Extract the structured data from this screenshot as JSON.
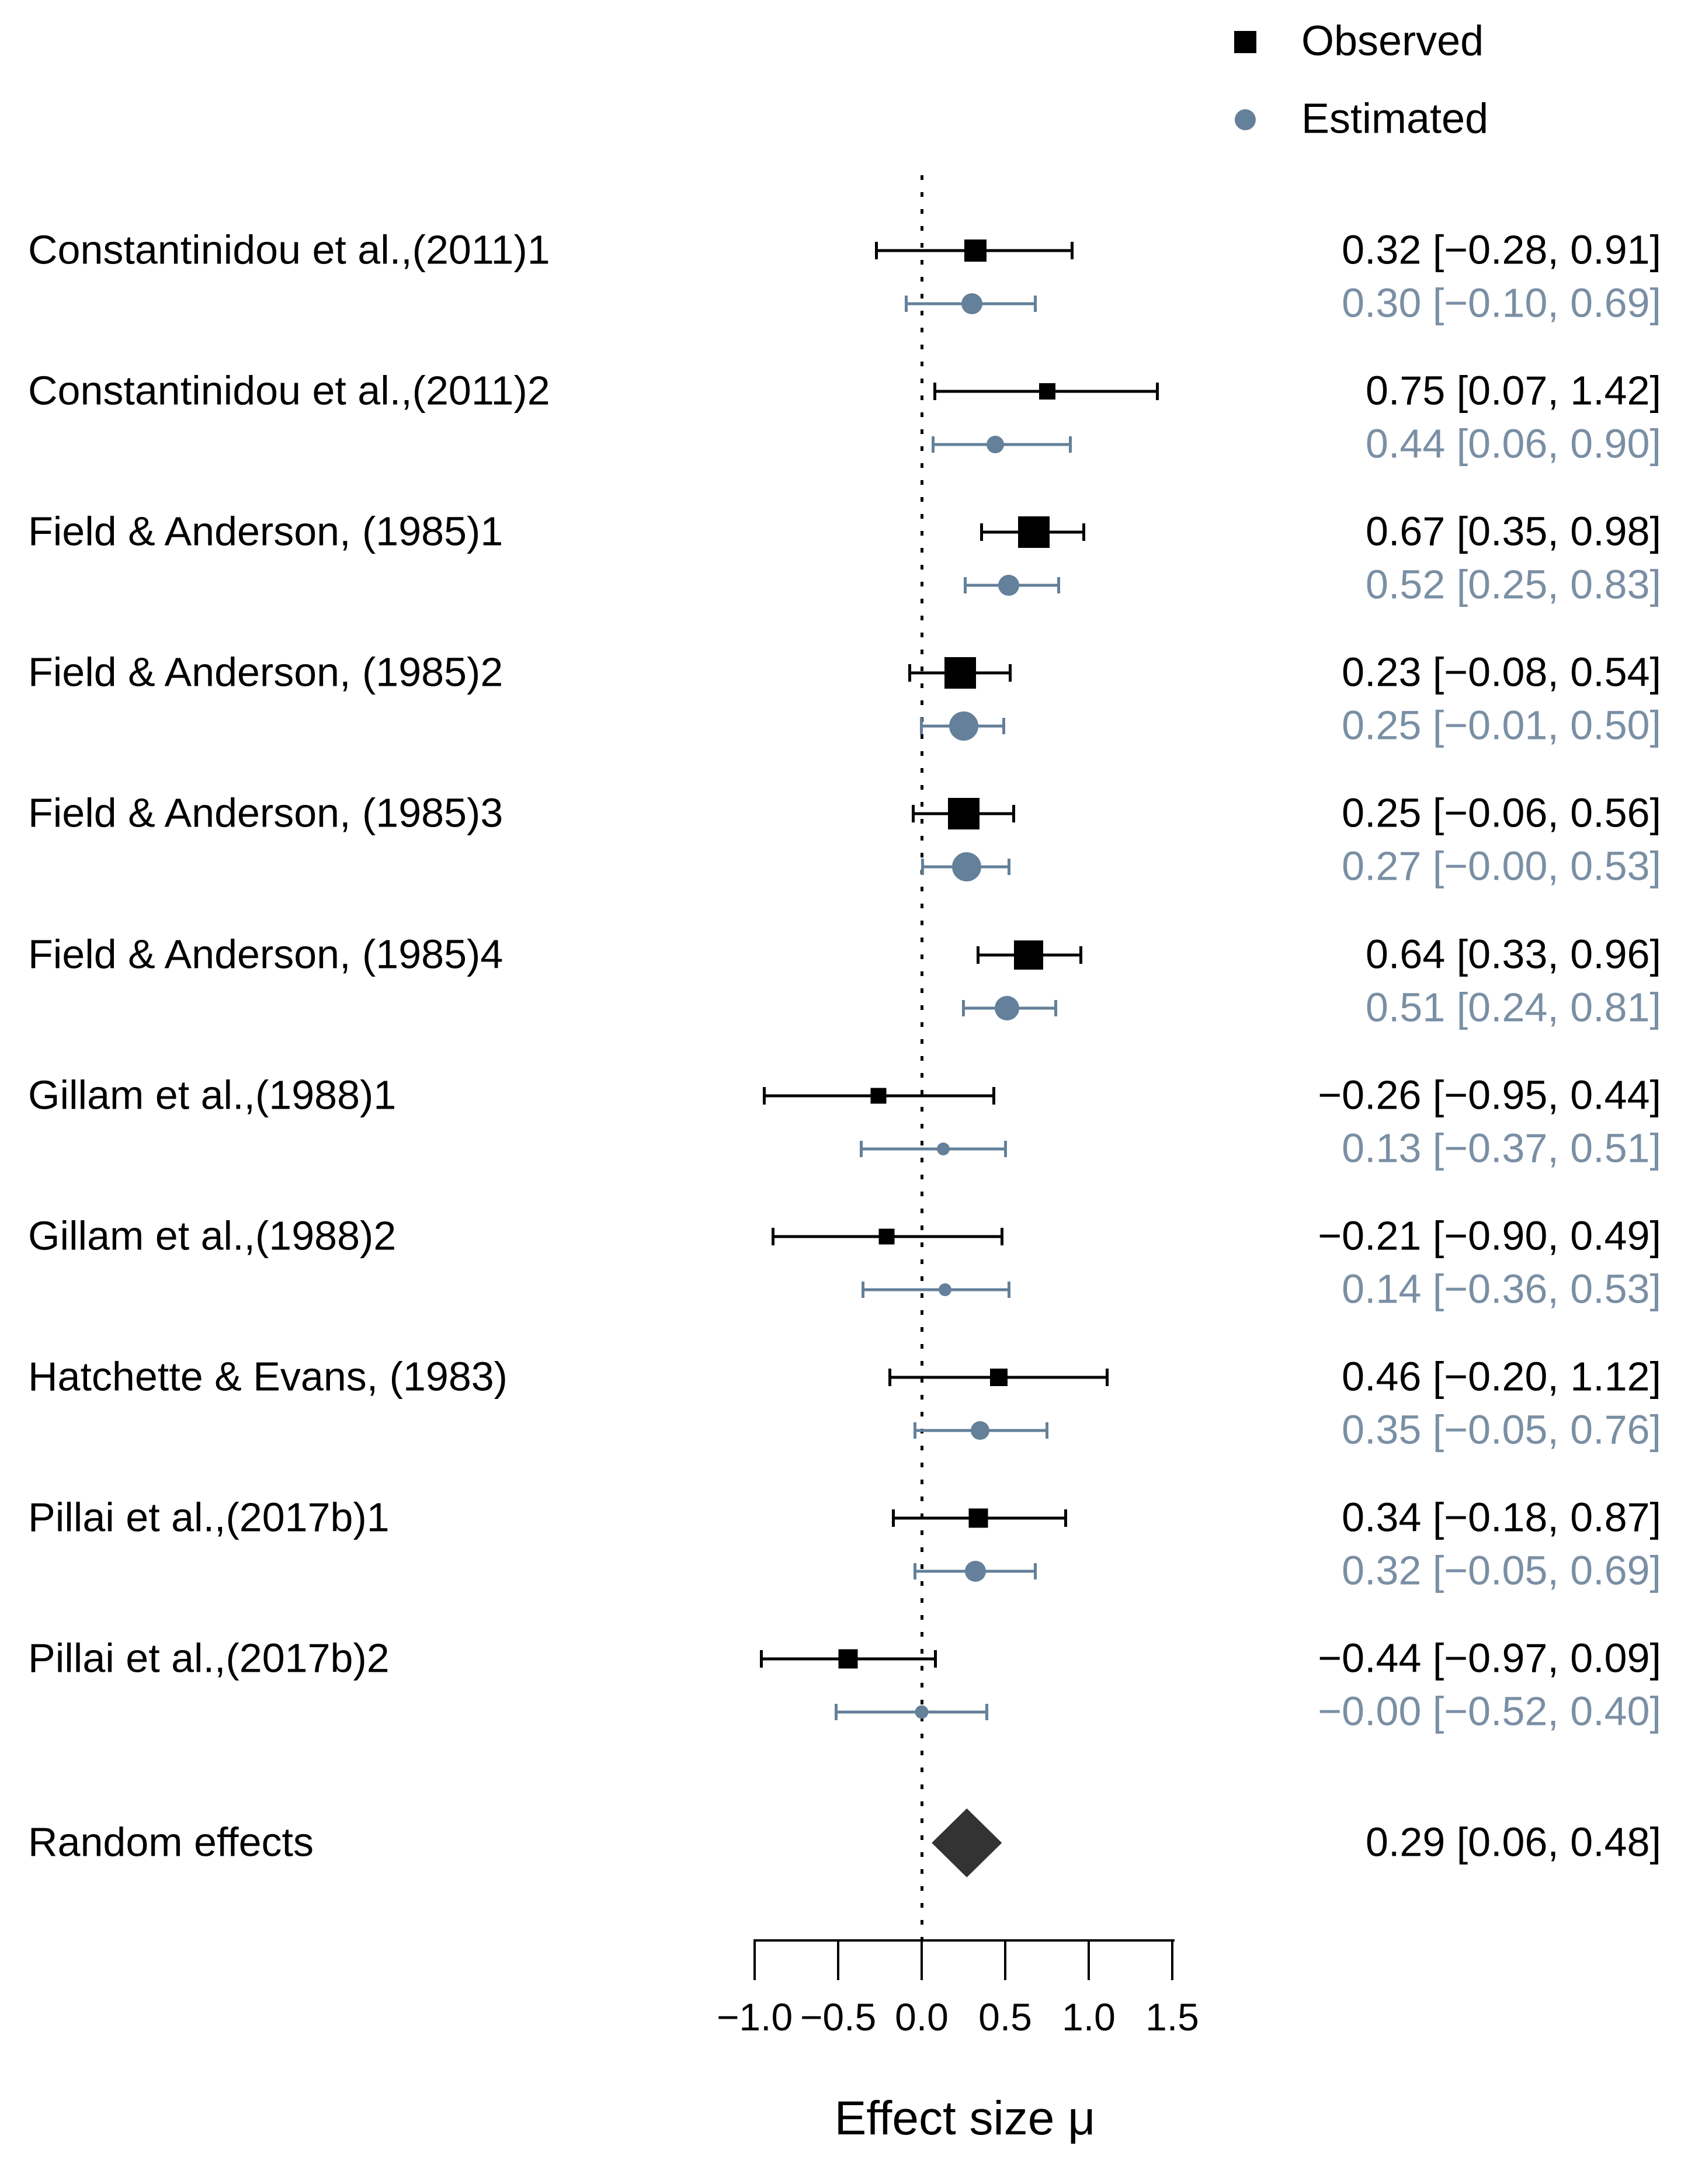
{
  "chart_data": {
    "type": "forest",
    "title": "",
    "xlabel": "Effect size μ",
    "legend": {
      "observed_label": "Observed",
      "estimated_label": "Estimated",
      "position": "top-right"
    },
    "colors": {
      "observed": "#000000",
      "estimated": "#64809a",
      "estimated_text": "#7a8fa4",
      "summary_diamond": "#333333",
      "axis": "#000000"
    },
    "axis": {
      "ticks": [
        -1.0,
        -0.5,
        0.0,
        0.5,
        1.0,
        1.5
      ],
      "tick_labels": [
        "−1.0",
        "−0.5",
        "0.0",
        "0.5",
        "1.0",
        "1.5"
      ],
      "xlim": [
        -1.0,
        1.5
      ],
      "zero_line": 0,
      "grid": false
    },
    "studies": [
      {
        "name": "Constantinidou et al.,(2011)1",
        "observed": {
          "value": 0.32,
          "lo": -0.28,
          "hi": 0.91,
          "text": "0.32 [−0.28, 0.91]",
          "marker_px": 38
        },
        "estimated": {
          "value": 0.3,
          "lo": -0.1,
          "hi": 0.69,
          "text": "0.30 [−0.10, 0.69]",
          "marker_px": 36
        }
      },
      {
        "name": "Constantinidou et al.,(2011)2",
        "observed": {
          "value": 0.75,
          "lo": 0.07,
          "hi": 1.42,
          "text": "0.75 [0.07, 1.42]",
          "marker_px": 28
        },
        "estimated": {
          "value": 0.44,
          "lo": 0.06,
          "hi": 0.9,
          "text": "0.44 [0.06, 0.90]",
          "marker_px": 30
        }
      },
      {
        "name": "Field & Anderson, (1985)1",
        "observed": {
          "value": 0.67,
          "lo": 0.35,
          "hi": 0.98,
          "text": "0.67 [0.35, 0.98]",
          "marker_px": 54
        },
        "estimated": {
          "value": 0.52,
          "lo": 0.25,
          "hi": 0.83,
          "text": "0.52 [0.25, 0.83]",
          "marker_px": 36
        }
      },
      {
        "name": "Field & Anderson, (1985)2",
        "observed": {
          "value": 0.23,
          "lo": -0.08,
          "hi": 0.54,
          "text": "0.23 [−0.08, 0.54]",
          "marker_px": 54
        },
        "estimated": {
          "value": 0.25,
          "lo": -0.01,
          "hi": 0.5,
          "text": "0.25 [−0.01, 0.50]",
          "marker_px": 50
        }
      },
      {
        "name": "Field & Anderson, (1985)3",
        "observed": {
          "value": 0.25,
          "lo": -0.06,
          "hi": 0.56,
          "text": "0.25 [−0.06, 0.56]",
          "marker_px": 54
        },
        "estimated": {
          "value": 0.27,
          "lo": -0.004,
          "hi": 0.53,
          "text": "0.27 [−0.00, 0.53]",
          "marker_px": 50
        }
      },
      {
        "name": "Field & Anderson, (1985)4",
        "observed": {
          "value": 0.64,
          "lo": 0.33,
          "hi": 0.96,
          "text": "0.64 [0.33, 0.96]",
          "marker_px": 50
        },
        "estimated": {
          "value": 0.51,
          "lo": 0.24,
          "hi": 0.81,
          "text": "0.51 [0.24, 0.81]",
          "marker_px": 42
        }
      },
      {
        "name": "Gillam et al.,(1988)1",
        "observed": {
          "value": -0.26,
          "lo": -0.95,
          "hi": 0.44,
          "text": "−0.26 [−0.95, 0.44]",
          "marker_px": 27
        },
        "estimated": {
          "value": 0.13,
          "lo": -0.37,
          "hi": 0.51,
          "text": "0.13 [−0.37, 0.51]",
          "marker_px": 22
        }
      },
      {
        "name": "Gillam et al.,(1988)2",
        "observed": {
          "value": -0.21,
          "lo": -0.9,
          "hi": 0.49,
          "text": "−0.21 [−0.90, 0.49]",
          "marker_px": 27
        },
        "estimated": {
          "value": 0.14,
          "lo": -0.36,
          "hi": 0.53,
          "text": "0.14 [−0.36, 0.53]",
          "marker_px": 22
        }
      },
      {
        "name": "Hatchette & Evans, (1983)",
        "observed": {
          "value": 0.46,
          "lo": -0.2,
          "hi": 1.12,
          "text": "0.46 [−0.20, 1.12]",
          "marker_px": 30
        },
        "estimated": {
          "value": 0.35,
          "lo": -0.05,
          "hi": 0.76,
          "text": "0.35 [−0.05, 0.76]",
          "marker_px": 32
        }
      },
      {
        "name": "Pillai et al.,(2017b)1",
        "observed": {
          "value": 0.34,
          "lo": -0.18,
          "hi": 0.87,
          "text": "0.34 [−0.18, 0.87]",
          "marker_px": 33
        },
        "estimated": {
          "value": 0.32,
          "lo": -0.05,
          "hi": 0.69,
          "text": "0.32 [−0.05, 0.69]",
          "marker_px": 36
        }
      },
      {
        "name": "Pillai et al.,(2017b)2",
        "observed": {
          "value": -0.44,
          "lo": -0.97,
          "hi": 0.09,
          "text": "−0.44 [−0.97, 0.09]",
          "marker_px": 33
        },
        "estimated": {
          "value": -0.001,
          "lo": -0.52,
          "hi": 0.4,
          "text": "−0.00 [−0.52, 0.40]",
          "marker_px": 23
        }
      }
    ],
    "summary": {
      "label": "Random effects",
      "value": 0.29,
      "lo": 0.06,
      "hi": 0.48,
      "text": "0.29 [0.06, 0.48]"
    }
  }
}
